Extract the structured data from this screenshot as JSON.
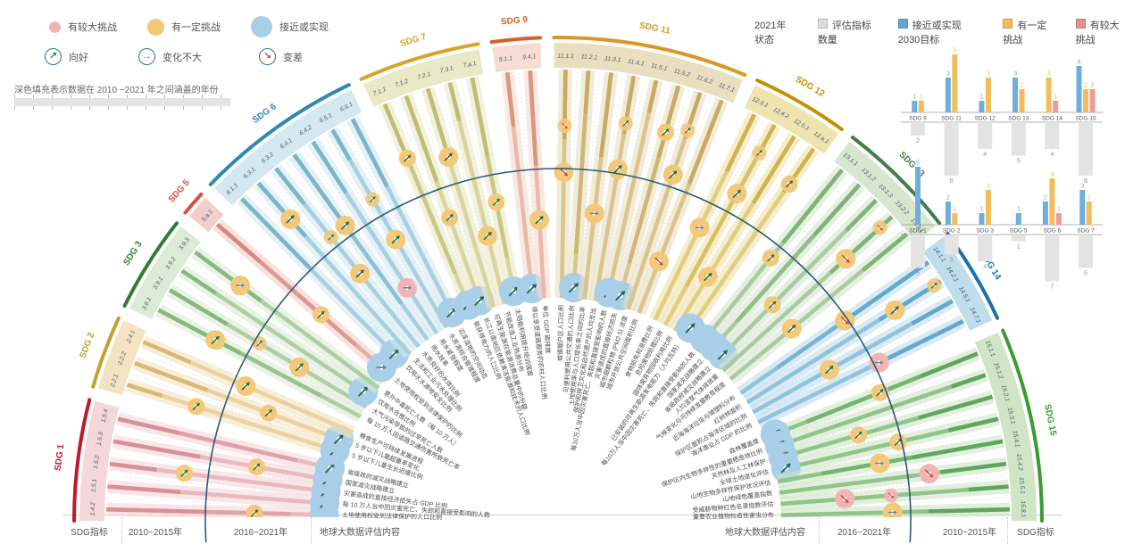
{
  "legend_status": {
    "items": [
      {
        "label": "有较大挑战",
        "color": "#F3B3B5",
        "size": 13
      },
      {
        "label": "有一定挑战",
        "color": "#F3C878",
        "size": 19
      },
      {
        "label": "接近或实现",
        "color": "#A9CEE8",
        "size": 24
      }
    ]
  },
  "legend_trend": {
    "items": [
      {
        "label": "向好",
        "glyph": "↗",
        "color": "#1A7A4E"
      },
      {
        "label": "变化不大",
        "glyph": "→",
        "color": "#5E87A0"
      },
      {
        "label": "变差",
        "glyph": "↘",
        "color": "#C14B45"
      }
    ]
  },
  "coverage_note": "深色填充表示数据在 2010 ~2021 年之间涵盖的年份",
  "legend_2021": {
    "title": "2021年状态",
    "items": [
      {
        "label": "评估指标数量",
        "color": "#DCDCDC"
      },
      {
        "label": "接近或实现2030目标",
        "color": "#5FA8D6"
      },
      {
        "label": "有一定挑战",
        "color": "#F0BE5A"
      },
      {
        "label": "有较大挑战",
        "color": "#E98F8F"
      }
    ]
  },
  "axis_labels": {
    "left": [
      "SDG指标",
      "2010~2015年",
      "2016~2021年",
      "地球大数据评估内容"
    ],
    "right": [
      "地球大数据评估内容",
      "2016~2021年",
      "2010~2015年",
      "SDG指标"
    ]
  },
  "chart_data": [
    {
      "type": "radial-fan",
      "description": "半圆扇形图：15个SDG的56项指标，外环为SDG指标编号，向心射线表示评估内容，圆圈颜色为状态（蓝=接近或实现，橙=有一定挑战，粉=有较大挑战），箭头为趋势",
      "rings": [
        "SDG指标",
        "2010~2015年",
        "2016~2021年",
        "地球大数据评估内容"
      ],
      "status_colors": {
        "blue": "#85BDE0",
        "blue_big": "#A9CEE8",
        "orange": "#F3C878",
        "pink": "#F3B3B3"
      },
      "trend_colors": {
        "up": "#1A6B47",
        "flat": "#5E87A0",
        "down": "#C14B45"
      },
      "sections": [
        {
          "sdg": "SDG 1",
          "rim": "#C0182B",
          "band": "#F4D7D9",
          "ray": "#E9B9BE",
          "deep": "#D98F96",
          "indicators": [
            {
              "code": "1.4.2",
              "label": "土地使用权受到法律保护的人口比例",
              "status": "blue",
              "trend": "flat"
            },
            {
              "code": "1.5.1",
              "label": "每 10 万人当中因灾害死亡、失踪和直接受影响的人数",
              "status": "blue",
              "trend": "up"
            },
            {
              "code": "1.5.2",
              "label": "灾害造成的直接经济损失占 GDP 比例",
              "status": "blue",
              "trend": "up"
            },
            {
              "code": "1.5.3",
              "label": "国家减灾战略建立",
              "status": "blue",
              "trend": "up"
            },
            {
              "code": "1.5.4",
              "label": "省级政府减灾战略建立",
              "status": "blue",
              "trend": "up"
            }
          ]
        },
        {
          "sdg": "SDG 2",
          "rim": "#C7A02A",
          "band": "#F4E3C3",
          "ray": "#E9D3A0",
          "deep": "#D9B96F",
          "indicators": [
            {
              "code": "2.2.1",
              "label": "5 岁以下儿童生长迟缓比例",
              "status": "blue",
              "trend": "up"
            },
            {
              "code": "2.2.2",
              "label": "5 岁以下儿童超重率变化",
              "status": "blue",
              "trend": "up"
            },
            {
              "code": "2.4.1",
              "label": "粮食生产可持续发展进程",
              "status": "orange",
              "trend": "up"
            }
          ]
        },
        {
          "sdg": "SDG 3",
          "rim": "#2F7D33",
          "band": "#DCEBD5",
          "ray": "#AECFA4",
          "deep": "#87B97E",
          "indicators": [
            {
              "code": "3.6.1",
              "label": "每 10 万人因道路交通伤害所致死亡率",
              "status": "orange",
              "trend": "up"
            },
            {
              "code": "3.9.1",
              "label": "大气污染导致的过早死亡人数",
              "status": "orange",
              "trend": "up"
            },
            {
              "code": "3.9.2",
              "label": "饮用水合格比例",
              "status": "blue",
              "trend": "up"
            },
            {
              "code": "3.9.3",
              "label": "意外中毒死亡人数（每 10 万人）",
              "status": "orange",
              "trend": "flat"
            }
          ]
        },
        {
          "sdg": "SDG 5",
          "rim": "#E14B38",
          "band": "#F3CFC9",
          "ray": "#E5ACA6",
          "deep": "#D68880",
          "indicators": [
            {
              "code": "5.a.1",
              "label": "土地使用权受到法律保护的比例",
              "status": "blue",
              "trend": "flat"
            }
          ]
        },
        {
          "sdg": "SDG 6",
          "rim": "#2D89B0",
          "band": "#D4E8F0",
          "ray": "#A6CFDF",
          "deep": "#7AB5CC",
          "indicators": [
            {
              "code": "6.1.1",
              "label": "饮用水水源地安全比例",
              "status": "blue",
              "trend": "up"
            },
            {
              "code": "6.3.1",
              "label": "生活和工业污水处理比例",
              "status": "orange",
              "trend": "up"
            },
            {
              "code": "6.3.2",
              "label": "水质良好的水体比例",
              "status": "orange",
              "trend": "up"
            },
            {
              "code": "6.4.1",
              "label": "用水效率",
              "status": "orange",
              "trend": "up"
            },
            {
              "code": "6.4.2",
              "label": "用水紧张程度",
              "status": "pink",
              "trend": "flat"
            },
            {
              "code": "6.5.1",
              "label": "水资源综合管理程度",
              "status": "orange",
              "trend": "up"
            },
            {
              "code": "6.6.1",
              "label": "沼泽湿地的空间动态",
              "status": "blue",
              "trend": "up"
            }
          ]
        },
        {
          "sdg": "SDG 7",
          "rim": "#D8A325",
          "band": "#EBE8C8",
          "ray": "#D8D49E",
          "deep": "#C2BC72",
          "indicators": [
            {
              "code": "7.1.1",
              "label": "能获得电力的人口比例",
              "status": "blue",
              "trend": "up"
            },
            {
              "code": "7.1.2",
              "label": "长江以南地区依赖清洁能源和技术的人口比例",
              "status": "blue",
              "trend": "up"
            },
            {
              "code": "7.2.1",
              "label": "可再生能源在能源消费总量中的份额",
              "status": "orange",
              "trend": "up"
            },
            {
              "code": "7.3.1",
              "label": "节能改造工业热源分布",
              "status": "orange",
              "trend": "up"
            },
            {
              "code": "7.a.1",
              "label": "太阳能利用提升培训强度",
              "status": "blue",
              "trend": "up"
            }
          ]
        },
        {
          "sdg": "SDG 9",
          "rim": "#D95F27",
          "band": "#F6DCD2",
          "ray": "#EBB9A9",
          "deep": "#DC9580",
          "indicators": [
            {
              "code": "9.1.1",
              "label": "得以享受道路服务的农村人口比例",
              "status": "blue",
              "trend": "up"
            },
            {
              "code": "9.4.1",
              "label": "单位 GDP 碳排放",
              "status": "orange",
              "trend": "up"
            }
          ]
        },
        {
          "sdg": "SDG 11",
          "rim": "#D99726",
          "band": "#E9DFC0",
          "ray": "#D9C48C",
          "deep": "#C7AB62",
          "indicators": [
            {
              "code": "11.1.1",
              "label": "城镇棚户区人口比例",
              "status": "orange",
              "trend": "down"
            },
            {
              "code": "11.2.1",
              "label": "可便利使用公共交通的人口比例",
              "status": "blue",
              "trend": "up"
            },
            {
              "code": "11.3.1",
              "label": "土地使用率与人口增长率之间的比率",
              "status": "orange",
              "trend": "flat"
            },
            {
              "code": "11.4.1",
              "label": "保护和捍卫文化和自然遗产的人均支出",
              "status": "orange",
              "trend": "up"
            },
            {
              "code": "11.5.1",
              "label": "每10万人当中因灾害死亡、失踪和直接受影响的人数",
              "status": "blue",
              "trend": "up"
            },
            {
              "code": "11.5.2",
              "label": "灾害造成的直接经济损失",
              "status": "blue",
              "trend": "up"
            },
            {
              "code": "11.6.2",
              "label": "城市细颗粒物 (PM2.5) 浓度",
              "status": "orange",
              "trend": "up"
            },
            {
              "code": "11.7.1",
              "label": "城市开放公共空间面积比例",
              "status": "orange",
              "trend": "down"
            }
          ]
        },
        {
          "sdg": "SDG 12",
          "rim": "#C49102",
          "band": "#EFE3AE",
          "ray": "#E2CD7C",
          "deep": "#CFB44E",
          "indicators": [
            {
              "code": "12.3.1",
              "label": "食物损失和浪费比例",
              "status": "orange",
              "trend": "flat"
            },
            {
              "code": "12.4.2",
              "label": "危险废物处理比例",
              "status": "orange",
              "trend": "up"
            },
            {
              "code": "12.5.1",
              "label": "固体废弃物回收利用比例",
              "status": "orange",
              "trend": "up"
            },
            {
              "code": "12.a.1",
              "label": "已安装的可再生能源发电能力（人均瓦特）",
              "status": "blue",
              "trend": "up"
            }
          ]
        },
        {
          "sdg": "SDG 13",
          "rim": "#3F7E44",
          "band": "#D6E6CF",
          "ray": "#A8CCA0",
          "deep": "#7FB478",
          "indicators": [
            {
              "code": "13.1.1",
              "label": "每10万人当中因灾害死亡、失踪和直接受影响的人数",
              "status": "blue",
              "trend": "up"
            },
            {
              "code": "13.1.2",
              "label": "国家减灾战略建立",
              "status": "blue",
              "trend": "up"
            },
            {
              "code": "13.1.3",
              "label": "省级政府减灾战略建立",
              "status": "blue",
              "trend": "up"
            },
            {
              "code": "13.2.2",
              "label": "人均温室气体排放量",
              "status": "orange",
              "trend": "down"
            },
            {
              "code": "13.3.1",
              "label": "气候变化与可持续发展教育程度",
              "status": "orange",
              "trend": "up"
            }
          ]
        },
        {
          "sdg": "SDG 14",
          "rim": "#1C6FA8",
          "band": "#BFDDEC",
          "ray": "#8FC2DC",
          "deep": "#62A8CC",
          "indicators": [
            {
              "code": "14.1.1",
              "label": "近海海洋垃圾与微塑料分布",
              "status": "orange",
              "trend": "down"
            },
            {
              "code": "14.2.1",
              "label": "红树林面积",
              "status": "orange",
              "trend": "up"
            },
            {
              "code": "14.5.1",
              "label": "保护区面积占海洋区域的比例",
              "status": "orange",
              "trend": "up"
            },
            {
              "code": "14.7.1",
              "label": "海洋渔业占 GDP 的比例",
              "status": "pink",
              "trend": "flat"
            }
          ]
        },
        {
          "sdg": "SDG 15",
          "rim": "#3C9A33",
          "band": "#CFE5C6",
          "ray": "#8FC48A",
          "deep": "#5FA75F",
          "indicators": [
            {
              "code": "15.1.1",
              "label": "森林覆盖度",
              "status": "blue",
              "trend": "up"
            },
            {
              "code": "15.1.2",
              "label": "保护区内生物多样性的重要栖息地比例",
              "status": "blue",
              "trend": "up"
            },
            {
              "code": "15.2.1",
              "label": "天然林及人工林保护",
              "status": "blue",
              "trend": "up"
            },
            {
              "code": "15.3.1",
              "label": "全球土地退化评估",
              "status": "blue",
              "trend": "up"
            },
            {
              "code": "15.4.1",
              "label": "山地生物多样性保护状况评估",
              "status": "orange",
              "trend": "flat"
            },
            {
              "code": "15.4.2",
              "label": "山地绿色覆盖指数",
              "status": "pink",
              "trend": "down"
            },
            {
              "code": "15.5.1",
              "label": "受威胁物种红色名录指数评估",
              "status": "pink",
              "trend": "down"
            },
            {
              "code": "15.8.1",
              "label": "重要农业植物检疫性害虫分布",
              "status": "orange",
              "trend": "flat"
            }
          ]
        }
      ]
    },
    {
      "type": "bar",
      "title": "2021年状态",
      "legend": [
        "评估指标数量",
        "接近或实现2030目标",
        "有一定挑战",
        "有较大挑战"
      ],
      "bar_colors": {
        "near": "#6FAEDB",
        "some": "#F2BE5C",
        "big": "#EF9A9A",
        "assessed": "#E3E3E3"
      },
      "rows": [
        [
          {
            "sdg": "SDG 9",
            "near": 1,
            "some": 1,
            "big": 0,
            "assessed": 2
          },
          {
            "sdg": "SDG 11",
            "near": 3,
            "some": 5,
            "big": 0,
            "assessed": 8
          },
          {
            "sdg": "SDG 12",
            "near": 1,
            "some": 3,
            "big": 0,
            "assessed": 4
          },
          {
            "sdg": "SDG 13",
            "near": 3,
            "some": 2,
            "big": 0,
            "assessed": 5
          },
          {
            "sdg": "SDG 14",
            "near": 0,
            "some": 3,
            "big": 1,
            "assessed": 4
          },
          {
            "sdg": "SDG 15",
            "near": 4,
            "some": 2,
            "big": 2,
            "assessed": 8
          }
        ],
        [
          {
            "sdg": "SDG 1",
            "near": 5,
            "some": 0,
            "big": 0,
            "assessed": 5
          },
          {
            "sdg": "SDG 2",
            "near": 2,
            "some": 1,
            "big": 0,
            "assessed": 3
          },
          {
            "sdg": "SDG 3",
            "near": 1,
            "some": 3,
            "big": 0,
            "assessed": 4
          },
          {
            "sdg": "SDG 5",
            "near": 1,
            "some": 0,
            "big": 0,
            "assessed": 1
          },
          {
            "sdg": "SDG 6",
            "near": 2,
            "some": 4,
            "big": 1,
            "assessed": 7
          },
          {
            "sdg": "SDG 7",
            "near": 3,
            "some": 2,
            "big": 0,
            "assessed": 5
          }
        ]
      ]
    }
  ]
}
